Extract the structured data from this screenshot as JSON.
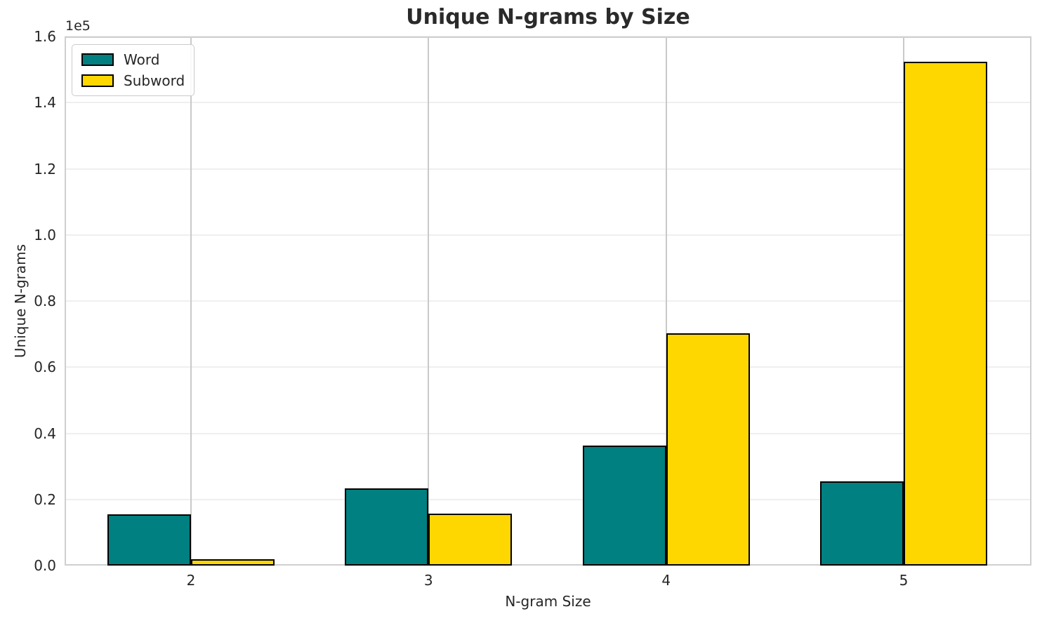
{
  "chart_data": {
    "type": "bar",
    "title": "Unique N-grams by Size",
    "xlabel": "N-gram Size",
    "ylabel": "Unique N-grams",
    "y_offset_label": "1e5",
    "categories": [
      "2",
      "3",
      "4",
      "5"
    ],
    "series": [
      {
        "name": "Word",
        "color": "#008080",
        "values": [
          15400,
          23400,
          36300,
          25500
        ]
      },
      {
        "name": "Subword",
        "color": "#FFD700",
        "values": [
          1900,
          15600,
          70200,
          152400
        ]
      }
    ],
    "ylim": [
      0,
      160000
    ],
    "ytick_step": 20000,
    "ytick_labels": [
      "0.0",
      "0.2",
      "0.4",
      "0.6",
      "0.8",
      "1.0",
      "1.2",
      "1.4",
      "1.6"
    ],
    "grid": true,
    "axisbelow": true,
    "bar_width_ratio": 0.35,
    "legend_position": "upper left",
    "colors": {
      "bar_edge": "#000000",
      "hgrid": "#efefef",
      "vgrid": "#c9c9c9",
      "spine": "#cfcfcf",
      "text": "#262626"
    }
  }
}
